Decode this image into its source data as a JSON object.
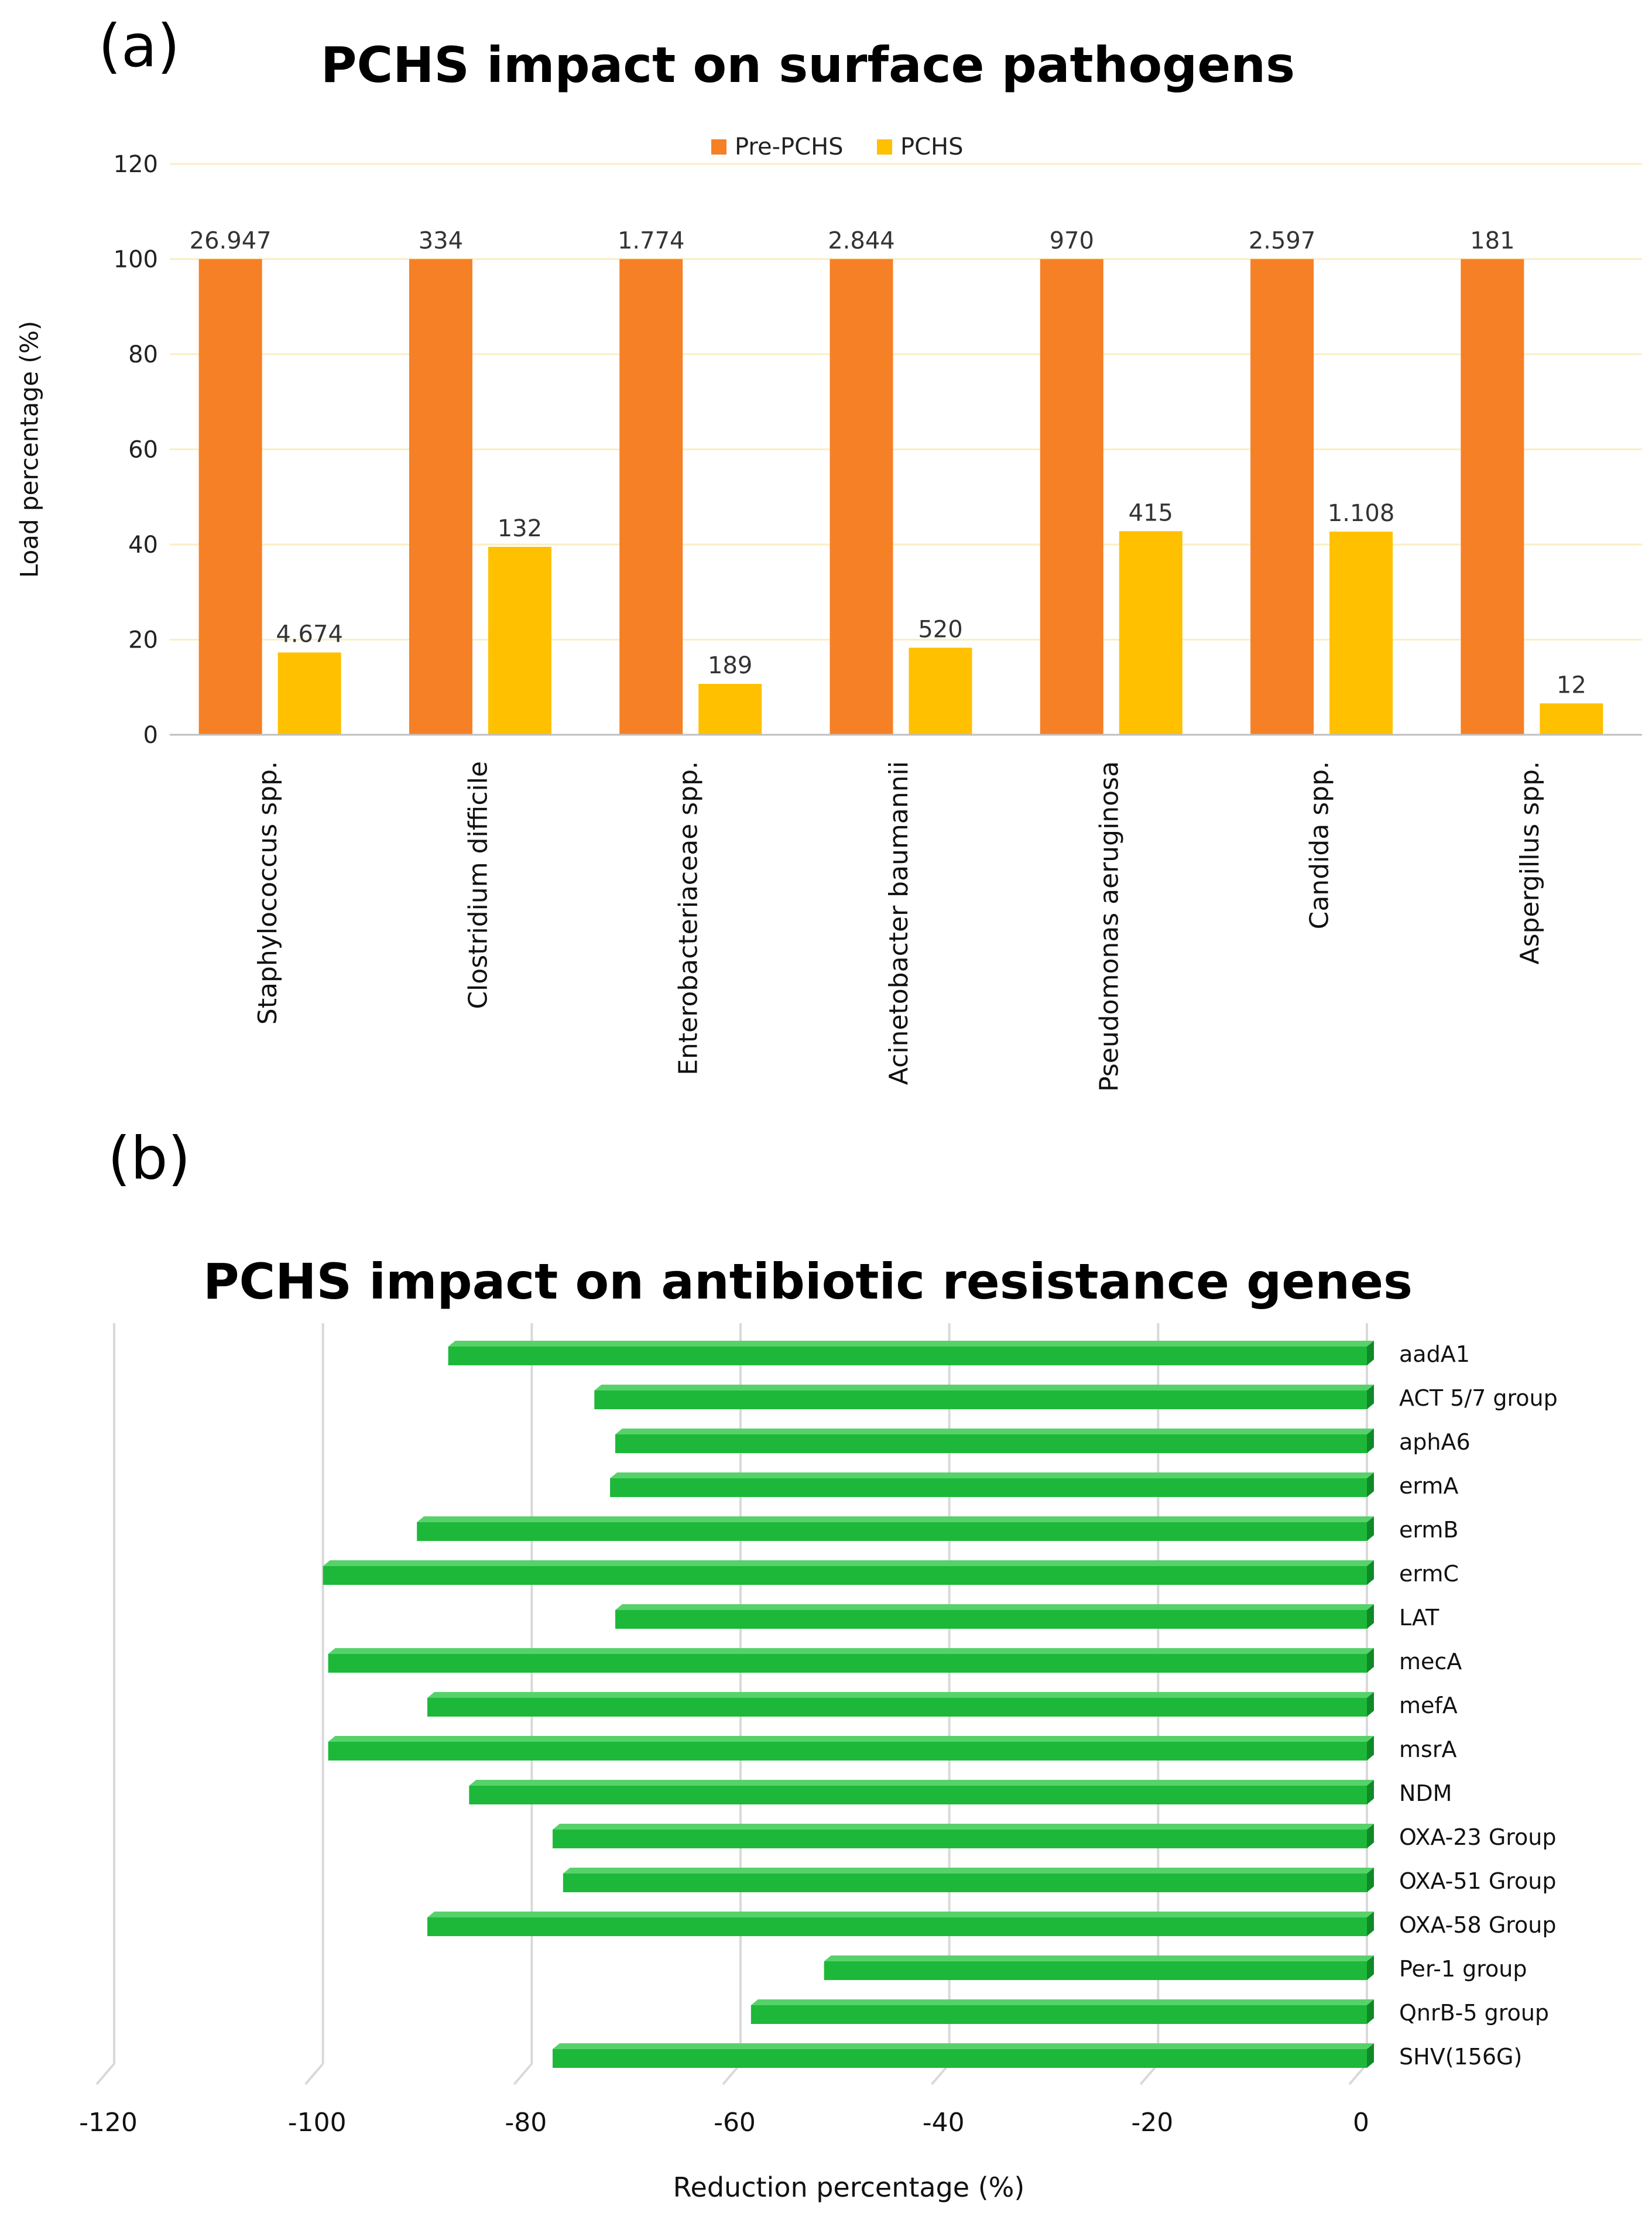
{
  "panel_a_label": "(a)",
  "panel_b_label": "(b)",
  "chart_data": [
    {
      "type": "bar",
      "title": "PCHS impact on surface pathogens",
      "ylabel": "Load percentage (%)",
      "xlabel": "",
      "ylim": [
        0,
        120
      ],
      "yticks": [
        0,
        20,
        40,
        60,
        80,
        100,
        120
      ],
      "grid": true,
      "legend": "top-center",
      "categories": [
        "Staphylococcus spp.",
        "Clostridium difficile",
        "Enterobacteriaceae spp.",
        "Acinetobacter baumannii",
        "Pseudomonas aeruginosa",
        "Candida spp.",
        "Aspergillus spp."
      ],
      "series": [
        {
          "name": "Pre-PCHS",
          "color": "#f58025",
          "values": [
            100,
            100,
            100,
            100,
            100,
            100,
            100
          ],
          "labels": [
            "26.947",
            "334",
            "1.774",
            "2.844",
            "970",
            "2.597",
            "181"
          ]
        },
        {
          "name": "PCHS",
          "color": "#ffc000",
          "values": [
            17.3,
            39.5,
            10.7,
            18.3,
            42.8,
            42.7,
            6.6
          ],
          "labels": [
            "4.674",
            "132",
            "189",
            "520",
            "415",
            "1.108",
            "12"
          ]
        }
      ]
    },
    {
      "type": "bar",
      "orientation": "horizontal",
      "title": "PCHS impact on antibiotic resistance genes",
      "xlabel": "Reduction percentage (%)",
      "ylabel": "",
      "xlim": [
        -120,
        0
      ],
      "xticks": [
        -120,
        -100,
        -80,
        -60,
        -40,
        -20,
        0
      ],
      "grid": true,
      "color": "#1db83a",
      "categories": [
        "aadA1",
        "ACT 5/7 group",
        "aphA6",
        "ermA",
        "ermB",
        "ermC",
        "LAT",
        "mecA",
        "mefA",
        "msrA",
        "NDM",
        "OXA-23 Group",
        "OXA-51 Group",
        "OXA-58 Group",
        "Per-1 group",
        "QnrB-5 group",
        "SHV(156G)"
      ],
      "values": [
        -88,
        -74,
        -72,
        -72.5,
        -91,
        -100,
        -72,
        -99.5,
        -90,
        -99.5,
        -86,
        -78,
        -77,
        -90,
        -52,
        -59,
        -78
      ]
    }
  ]
}
